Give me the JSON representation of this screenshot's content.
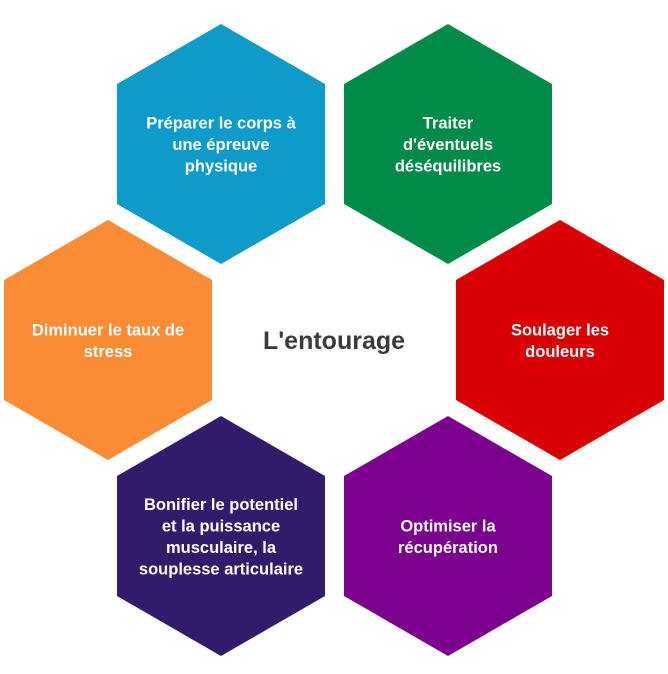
{
  "center_label": "L'entourage",
  "hexagons": [
    {
      "id": "preparer",
      "color": "#0e9bc9",
      "lines": [
        "Préparer le corps à",
        "une épreuve",
        "physique"
      ]
    },
    {
      "id": "traiter",
      "color": "#008c48",
      "lines": [
        "Traiter",
        "d'éventuels",
        "déséquilibres"
      ]
    },
    {
      "id": "soulager",
      "color": "#d90003",
      "lines": [
        "Soulager les",
        "douleurs"
      ]
    },
    {
      "id": "optimiser",
      "color": "#7a028c",
      "lines": [
        "Optimiser la",
        "récupération"
      ]
    },
    {
      "id": "bonifier",
      "color": "#331b6b",
      "lines": [
        "Bonifier le potentiel",
        "et la puissance",
        "musculaire, la",
        "souplesse articulaire"
      ]
    },
    {
      "id": "diminuer",
      "color": "#fb8c36",
      "lines": [
        "Diminuer le taux de",
        "stress"
      ]
    }
  ]
}
